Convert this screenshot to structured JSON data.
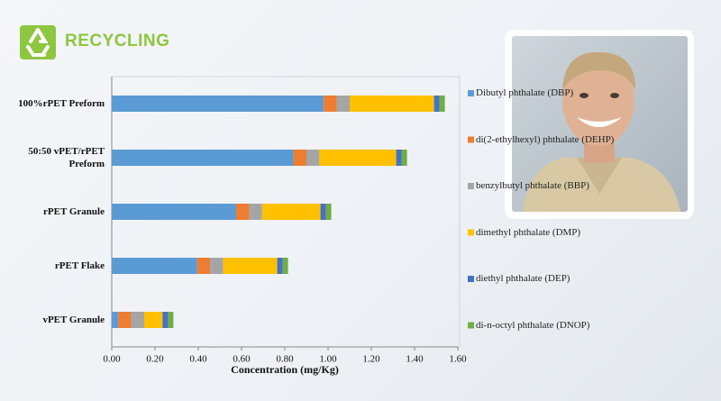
{
  "brand": "RECYCLING",
  "chart_data": {
    "type": "stacked-bar-horizontal",
    "x_label": "Concentration (mg/Kg)",
    "categories": [
      "100%rPET Preform",
      "50:50 vPET/rPET Preform",
      "rPET Granule",
      "rPET Flake",
      "vPET Granule"
    ],
    "series": [
      {
        "name": "Dibutyl phthalate (DBP)",
        "color": "#5b9bd5",
        "values": [
          0.98,
          0.84,
          0.575,
          0.395,
          0.03
        ]
      },
      {
        "name": "di(2-ethylhexyl) phthalate (DEHP)",
        "color": "#ed7d31",
        "values": [
          0.06,
          0.06,
          0.06,
          0.06,
          0.06
        ]
      },
      {
        "name": "benzylbutyl phthalate (BBP)",
        "color": "#a5a5a5",
        "values": [
          0.06,
          0.06,
          0.06,
          0.06,
          0.06
        ]
      },
      {
        "name": "dimethyl phthalate (DMP)",
        "color": "#ffc000",
        "values": [
          0.39,
          0.355,
          0.27,
          0.25,
          0.085
        ]
      },
      {
        "name": "diethyl phthalate (DEP)",
        "color": "#4472c4",
        "values": [
          0.025,
          0.025,
          0.025,
          0.025,
          0.025
        ]
      },
      {
        "name": "di-n-octyl phthalate (DNOP)",
        "color": "#70ad47",
        "values": [
          0.025,
          0.025,
          0.025,
          0.025,
          0.025
        ]
      }
    ],
    "xlim": [
      0,
      1.6
    ],
    "xticks": [
      {
        "value": 0,
        "label": "0.00"
      },
      {
        "value": 0.2,
        "label": "0.20"
      },
      {
        "value": 0.4,
        "label": "0.40"
      },
      {
        "value": 0.6,
        "label": "0.60"
      },
      {
        "value": 0.8,
        "label": "0.80"
      },
      {
        "value": 1,
        "label": "1.00"
      },
      {
        "value": 1.2,
        "label": "1.20"
      },
      {
        "value": 1.4,
        "label": "1.40"
      },
      {
        "value": 1.6,
        "label": "1.60"
      }
    ],
    "legend": "right"
  }
}
